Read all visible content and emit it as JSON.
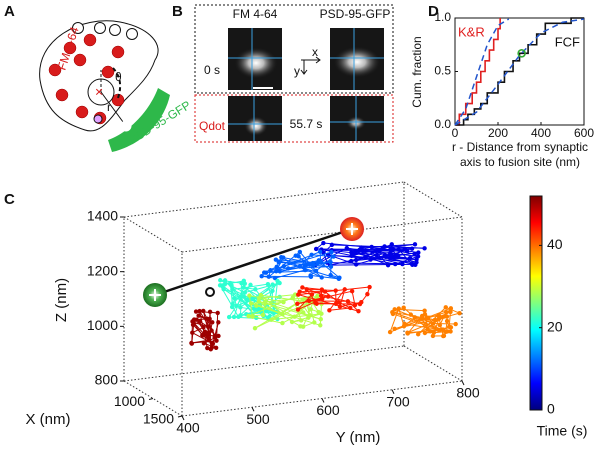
{
  "panel_labels": [
    "A",
    "B",
    "C",
    "D"
  ],
  "panel_a": {
    "labels": {
      "fm": "FM 4-64",
      "psd": "PSD-95-GFP",
      "theta": "θ",
      "r": "r"
    }
  },
  "panel_b": {
    "columns": [
      "FM 4-64",
      "PSD-95-GFP"
    ],
    "times": [
      "0 s",
      "55.7 s"
    ],
    "row_label": "Qdot",
    "axes": [
      "x",
      "y"
    ]
  },
  "chart_data": [
    {
      "type": "scatter3d",
      "xlabel": "X (nm)",
      "ylabel": "Y (nm)",
      "zlabel": "Z (nm)",
      "xlim": [
        500,
        1500
      ],
      "xticks": [
        1000,
        1500
      ],
      "ylim": [
        400,
        800
      ],
      "yticks": [
        400,
        500,
        600,
        700,
        800
      ],
      "zlim": [
        800,
        1400
      ],
      "zticks": [
        800,
        1000,
        1200,
        1400
      ],
      "grid": true,
      "colorbar": {
        "label": "Time (s)",
        "lim": [
          0,
          52
        ],
        "ticks": [
          0,
          20,
          40
        ]
      }
    },
    {
      "type": "line",
      "ylabel": "Cum. fraction",
      "xlabel": [
        "r - Distance from synaptic",
        "axis to fusion site (nm)"
      ],
      "xlim": [
        0,
        600
      ],
      "xticks": [
        0,
        200,
        400,
        600
      ],
      "ylim": [
        0,
        1
      ],
      "yticks": [
        {
          "value": 0,
          "label": "0.0"
        },
        {
          "value": 0.5,
          "label": "0.5"
        },
        {
          "value": 1,
          "label": "1.0"
        }
      ],
      "series": [
        {
          "name": "K&R",
          "color": "#e02020",
          "x": [
            0,
            20,
            20,
            50,
            50,
            80,
            80,
            100,
            100,
            120,
            120,
            140,
            140,
            160,
            160,
            180,
            180,
            200,
            200,
            210,
            210
          ],
          "values": [
            0,
            0,
            0.1,
            0.1,
            0.2,
            0.2,
            0.3,
            0.3,
            0.4,
            0.4,
            0.5,
            0.5,
            0.6,
            0.6,
            0.7,
            0.7,
            0.8,
            0.8,
            0.9,
            0.9,
            1.0
          ]
        },
        {
          "name": "FCF",
          "color": "#111111",
          "x": [
            0,
            40,
            40,
            60,
            60,
            90,
            90,
            120,
            120,
            150,
            150,
            200,
            200,
            230,
            230,
            270,
            270,
            300,
            300,
            340,
            340,
            380,
            380,
            420,
            420,
            540,
            540,
            600
          ],
          "values": [
            0,
            0,
            0.05,
            0.05,
            0.1,
            0.1,
            0.15,
            0.15,
            0.2,
            0.2,
            0.3,
            0.3,
            0.4,
            0.4,
            0.5,
            0.5,
            0.6,
            0.6,
            0.67,
            0.67,
            0.75,
            0.75,
            0.85,
            0.85,
            0.95,
            0.95,
            1.0,
            1.0
          ]
        },
        {
          "color": "#2255cc",
          "style": "dashed",
          "x": [
            0,
            50,
            100,
            150,
            200,
            250
          ],
          "values": [
            0,
            0.15,
            0.45,
            0.75,
            0.93,
            0.99
          ]
        },
        {
          "color": "#2255cc",
          "style": "dashed",
          "x": [
            0,
            100,
            200,
            300,
            400,
            500,
            600
          ],
          "values": [
            0,
            0.12,
            0.38,
            0.65,
            0.86,
            0.96,
            0.99
          ]
        }
      ],
      "highlight": {
        "x": 310,
        "y": 0.67,
        "color": "#33aa33"
      }
    }
  ]
}
